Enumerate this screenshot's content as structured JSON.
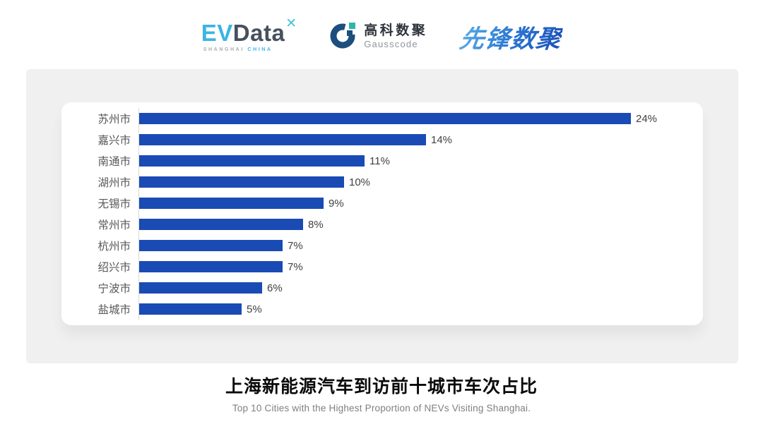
{
  "header": {
    "evdata": {
      "ev": "EV",
      "data": "Data",
      "spark_glyph": "✕",
      "sub_shanghai": "SHANGHAI",
      "sub_china": "CHINA"
    },
    "gausscode": {
      "name_cn": "高科数聚",
      "name_en": "Gausscode"
    },
    "pioneer": {
      "name_cn": "先锋数聚"
    }
  },
  "chart_data": {
    "type": "bar",
    "orientation": "horizontal",
    "title": "上海新能源汽车到访前十城市车次占比",
    "subtitle": "Top 10 Cities with the Highest Proportion of  NEVs Visiting Shanghai.",
    "categories": [
      "苏州市",
      "嘉兴市",
      "南通市",
      "湖州市",
      "无锡市",
      "常州市",
      "杭州市",
      "绍兴市",
      "宁波市",
      "盐城市"
    ],
    "values": [
      24,
      14,
      11,
      10,
      9,
      8,
      7,
      7,
      6,
      5
    ],
    "value_labels": [
      "24%",
      "14%",
      "11%",
      "10%",
      "9%",
      "8%",
      "7%",
      "7%",
      "6%",
      "5%"
    ],
    "unit": "%",
    "xlim": [
      0,
      26
    ],
    "grid": false,
    "legend": "none",
    "bar_color": "#1A4BB5",
    "axis_line_color": "#D9D9D9",
    "category_label_color": "#595959",
    "value_label_color": "#404040"
  },
  "footer": {
    "title": "上海新能源汽车到访前十城市车次占比",
    "subtitle": "Top 10 Cities with the Highest Proportion of  NEVs Visiting Shanghai."
  },
  "colors": {
    "page_background": "#FFFFFF",
    "panel_background": "#F0F0F1",
    "card_background": "#FFFFFF",
    "evdata_blue": "#3CB4E5",
    "evdata_slate": "#46505F",
    "gausscode_navy": "#1C4E7E",
    "gausscode_teal": "#2FB5AE",
    "pioneer_blue": "#2E7CD6"
  }
}
